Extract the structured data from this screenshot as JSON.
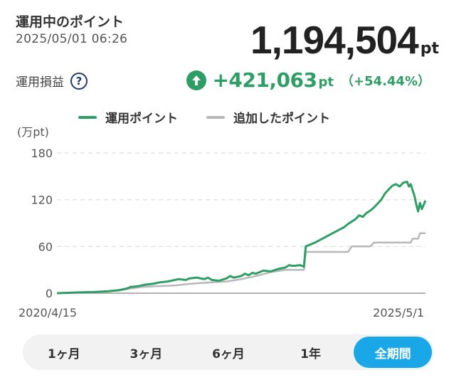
{
  "header": {
    "title": "運用中のポイント",
    "timestamp": "2025/05/01 06:26",
    "total_value": "1,194,504",
    "total_unit": "pt"
  },
  "profit_loss": {
    "label": "運用損益",
    "help_icon": "?",
    "value": "+421,063",
    "unit": "pt",
    "percent": "（+54.44%）"
  },
  "colors": {
    "accent_green": "#2e9e64",
    "added_gray": "#b8b8b8",
    "active_tab": "#1aa7e8"
  },
  "chart_data": {
    "type": "line",
    "ylabel": "(万pt)",
    "ylim": [
      0,
      180
    ],
    "yticks": [
      0,
      60,
      120,
      180
    ],
    "x_start_label": "2020/4/15",
    "x_end_label": "2025/5/1",
    "grid": "horizontal-dashed",
    "legend_position": "top",
    "series": [
      {
        "name": "運用ポイント",
        "color": "#2e9e64",
        "points": [
          [
            0,
            0
          ],
          [
            0.03,
            0.5
          ],
          [
            0.06,
            1
          ],
          [
            0.1,
            1.5
          ],
          [
            0.14,
            2.5
          ],
          [
            0.17,
            4
          ],
          [
            0.19,
            6
          ],
          [
            0.2,
            8
          ],
          [
            0.22,
            9
          ],
          [
            0.24,
            11
          ],
          [
            0.26,
            12
          ],
          [
            0.28,
            14
          ],
          [
            0.3,
            15
          ],
          [
            0.32,
            17
          ],
          [
            0.33,
            18
          ],
          [
            0.35,
            17
          ],
          [
            0.36,
            19
          ],
          [
            0.38,
            20
          ],
          [
            0.4,
            18
          ],
          [
            0.41,
            20
          ],
          [
            0.42,
            17
          ],
          [
            0.44,
            16
          ],
          [
            0.46,
            19
          ],
          [
            0.47,
            22
          ],
          [
            0.48,
            20
          ],
          [
            0.5,
            22
          ],
          [
            0.51,
            25
          ],
          [
            0.52,
            23
          ],
          [
            0.53,
            26
          ],
          [
            0.54,
            25
          ],
          [
            0.55,
            27
          ],
          [
            0.56,
            29
          ],
          [
            0.58,
            28
          ],
          [
            0.6,
            31
          ],
          [
            0.62,
            33
          ],
          [
            0.63,
            36
          ],
          [
            0.64,
            35
          ],
          [
            0.66,
            36
          ],
          [
            0.67,
            34
          ],
          [
            0.675,
            60
          ],
          [
            0.68,
            61
          ],
          [
            0.7,
            65
          ],
          [
            0.72,
            70
          ],
          [
            0.74,
            75
          ],
          [
            0.76,
            80
          ],
          [
            0.78,
            85
          ],
          [
            0.79,
            89
          ],
          [
            0.8,
            92
          ],
          [
            0.81,
            95
          ],
          [
            0.82,
            100
          ],
          [
            0.83,
            98
          ],
          [
            0.84,
            103
          ],
          [
            0.85,
            106
          ],
          [
            0.86,
            110
          ],
          [
            0.87,
            115
          ],
          [
            0.88,
            120
          ],
          [
            0.89,
            128
          ],
          [
            0.9,
            133
          ],
          [
            0.91,
            138
          ],
          [
            0.92,
            140
          ],
          [
            0.93,
            137
          ],
          [
            0.94,
            142
          ],
          [
            0.95,
            143
          ],
          [
            0.955,
            137
          ],
          [
            0.96,
            140
          ],
          [
            0.965,
            132
          ],
          [
            0.97,
            125
          ],
          [
            0.975,
            114
          ],
          [
            0.98,
            105
          ],
          [
            0.985,
            116
          ],
          [
            0.99,
            108
          ],
          [
            1.0,
            119
          ]
        ]
      },
      {
        "name": "追加したポイント",
        "color": "#b8b8b8",
        "points": [
          [
            0,
            0
          ],
          [
            0.05,
            1
          ],
          [
            0.1,
            1.5
          ],
          [
            0.14,
            2.5
          ],
          [
            0.17,
            3.5
          ],
          [
            0.2,
            6
          ],
          [
            0.23,
            8
          ],
          [
            0.27,
            9
          ],
          [
            0.32,
            10
          ],
          [
            0.36,
            12
          ],
          [
            0.39,
            13
          ],
          [
            0.42,
            14
          ],
          [
            0.46,
            15
          ],
          [
            0.5,
            18
          ],
          [
            0.54,
            22
          ],
          [
            0.58,
            27
          ],
          [
            0.62,
            30
          ],
          [
            0.67,
            30
          ],
          [
            0.675,
            53
          ],
          [
            0.79,
            53
          ],
          [
            0.8,
            60
          ],
          [
            0.85,
            60
          ],
          [
            0.86,
            65
          ],
          [
            0.96,
            65
          ],
          [
            0.965,
            70
          ],
          [
            0.98,
            70
          ],
          [
            0.985,
            77
          ],
          [
            1.0,
            77
          ]
        ]
      }
    ]
  },
  "tabs": [
    {
      "label": "1ヶ月",
      "active": false
    },
    {
      "label": "3ヶ月",
      "active": false
    },
    {
      "label": "6ヶ月",
      "active": false
    },
    {
      "label": "1年",
      "active": false
    },
    {
      "label": "全期間",
      "active": true
    }
  ]
}
